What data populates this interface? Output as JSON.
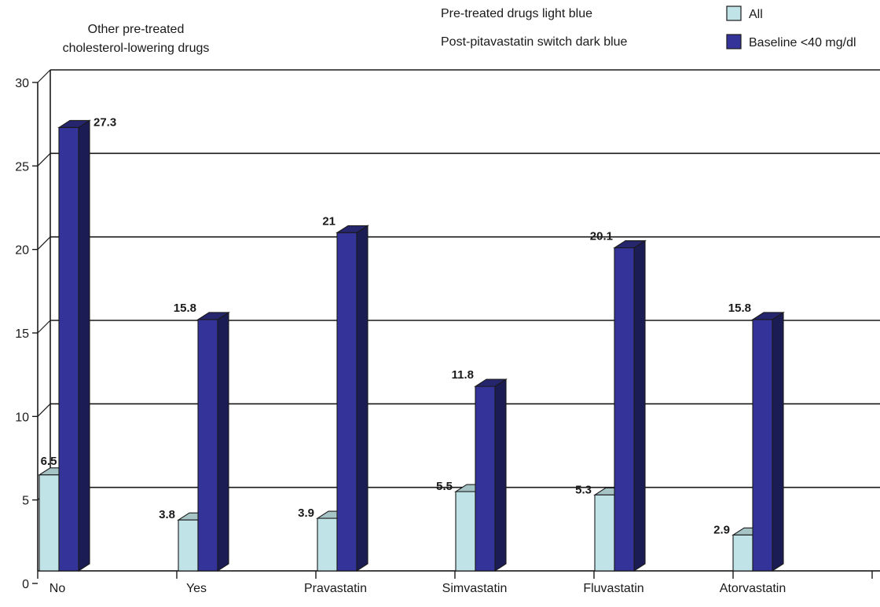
{
  "chart_data": {
    "type": "bar",
    "title_lines": [
      "Other pre-treated",
      "cholesterol-lowering drugs"
    ],
    "notes": [
      "Pre-treated drugs light blue",
      "Post-pitavastatin switch dark blue"
    ],
    "categories": [
      "No",
      "Yes",
      "Pravastatin",
      "Simvastatin",
      "Fluvastatin",
      "Atorvastatin"
    ],
    "series": [
      {
        "name": "All",
        "color": "#bfe3e6",
        "side_color": "#7fa3a7",
        "top_color": "#a6c4c6",
        "values": [
          6.5,
          3.8,
          3.9,
          5.5,
          5.3,
          2.9
        ],
        "labels": [
          "6.5",
          "3.8",
          "3.9",
          "5.5",
          "5.3",
          "2.9"
        ]
      },
      {
        "name": "Baseline <40 mg/dl",
        "color": "#333399",
        "side_color": "#1c1c55",
        "top_color": "#26266e",
        "values": [
          27.3,
          15.8,
          21,
          11.8,
          20.1,
          15.8
        ],
        "labels": [
          "27.3",
          "15.8",
          "21",
          "11.8",
          "20.1",
          "15.8"
        ]
      }
    ],
    "ylim": [
      0,
      30
    ],
    "yticks": [
      0,
      5,
      10,
      15,
      20,
      25,
      30
    ],
    "grid": true,
    "legend_position": "top-right"
  }
}
